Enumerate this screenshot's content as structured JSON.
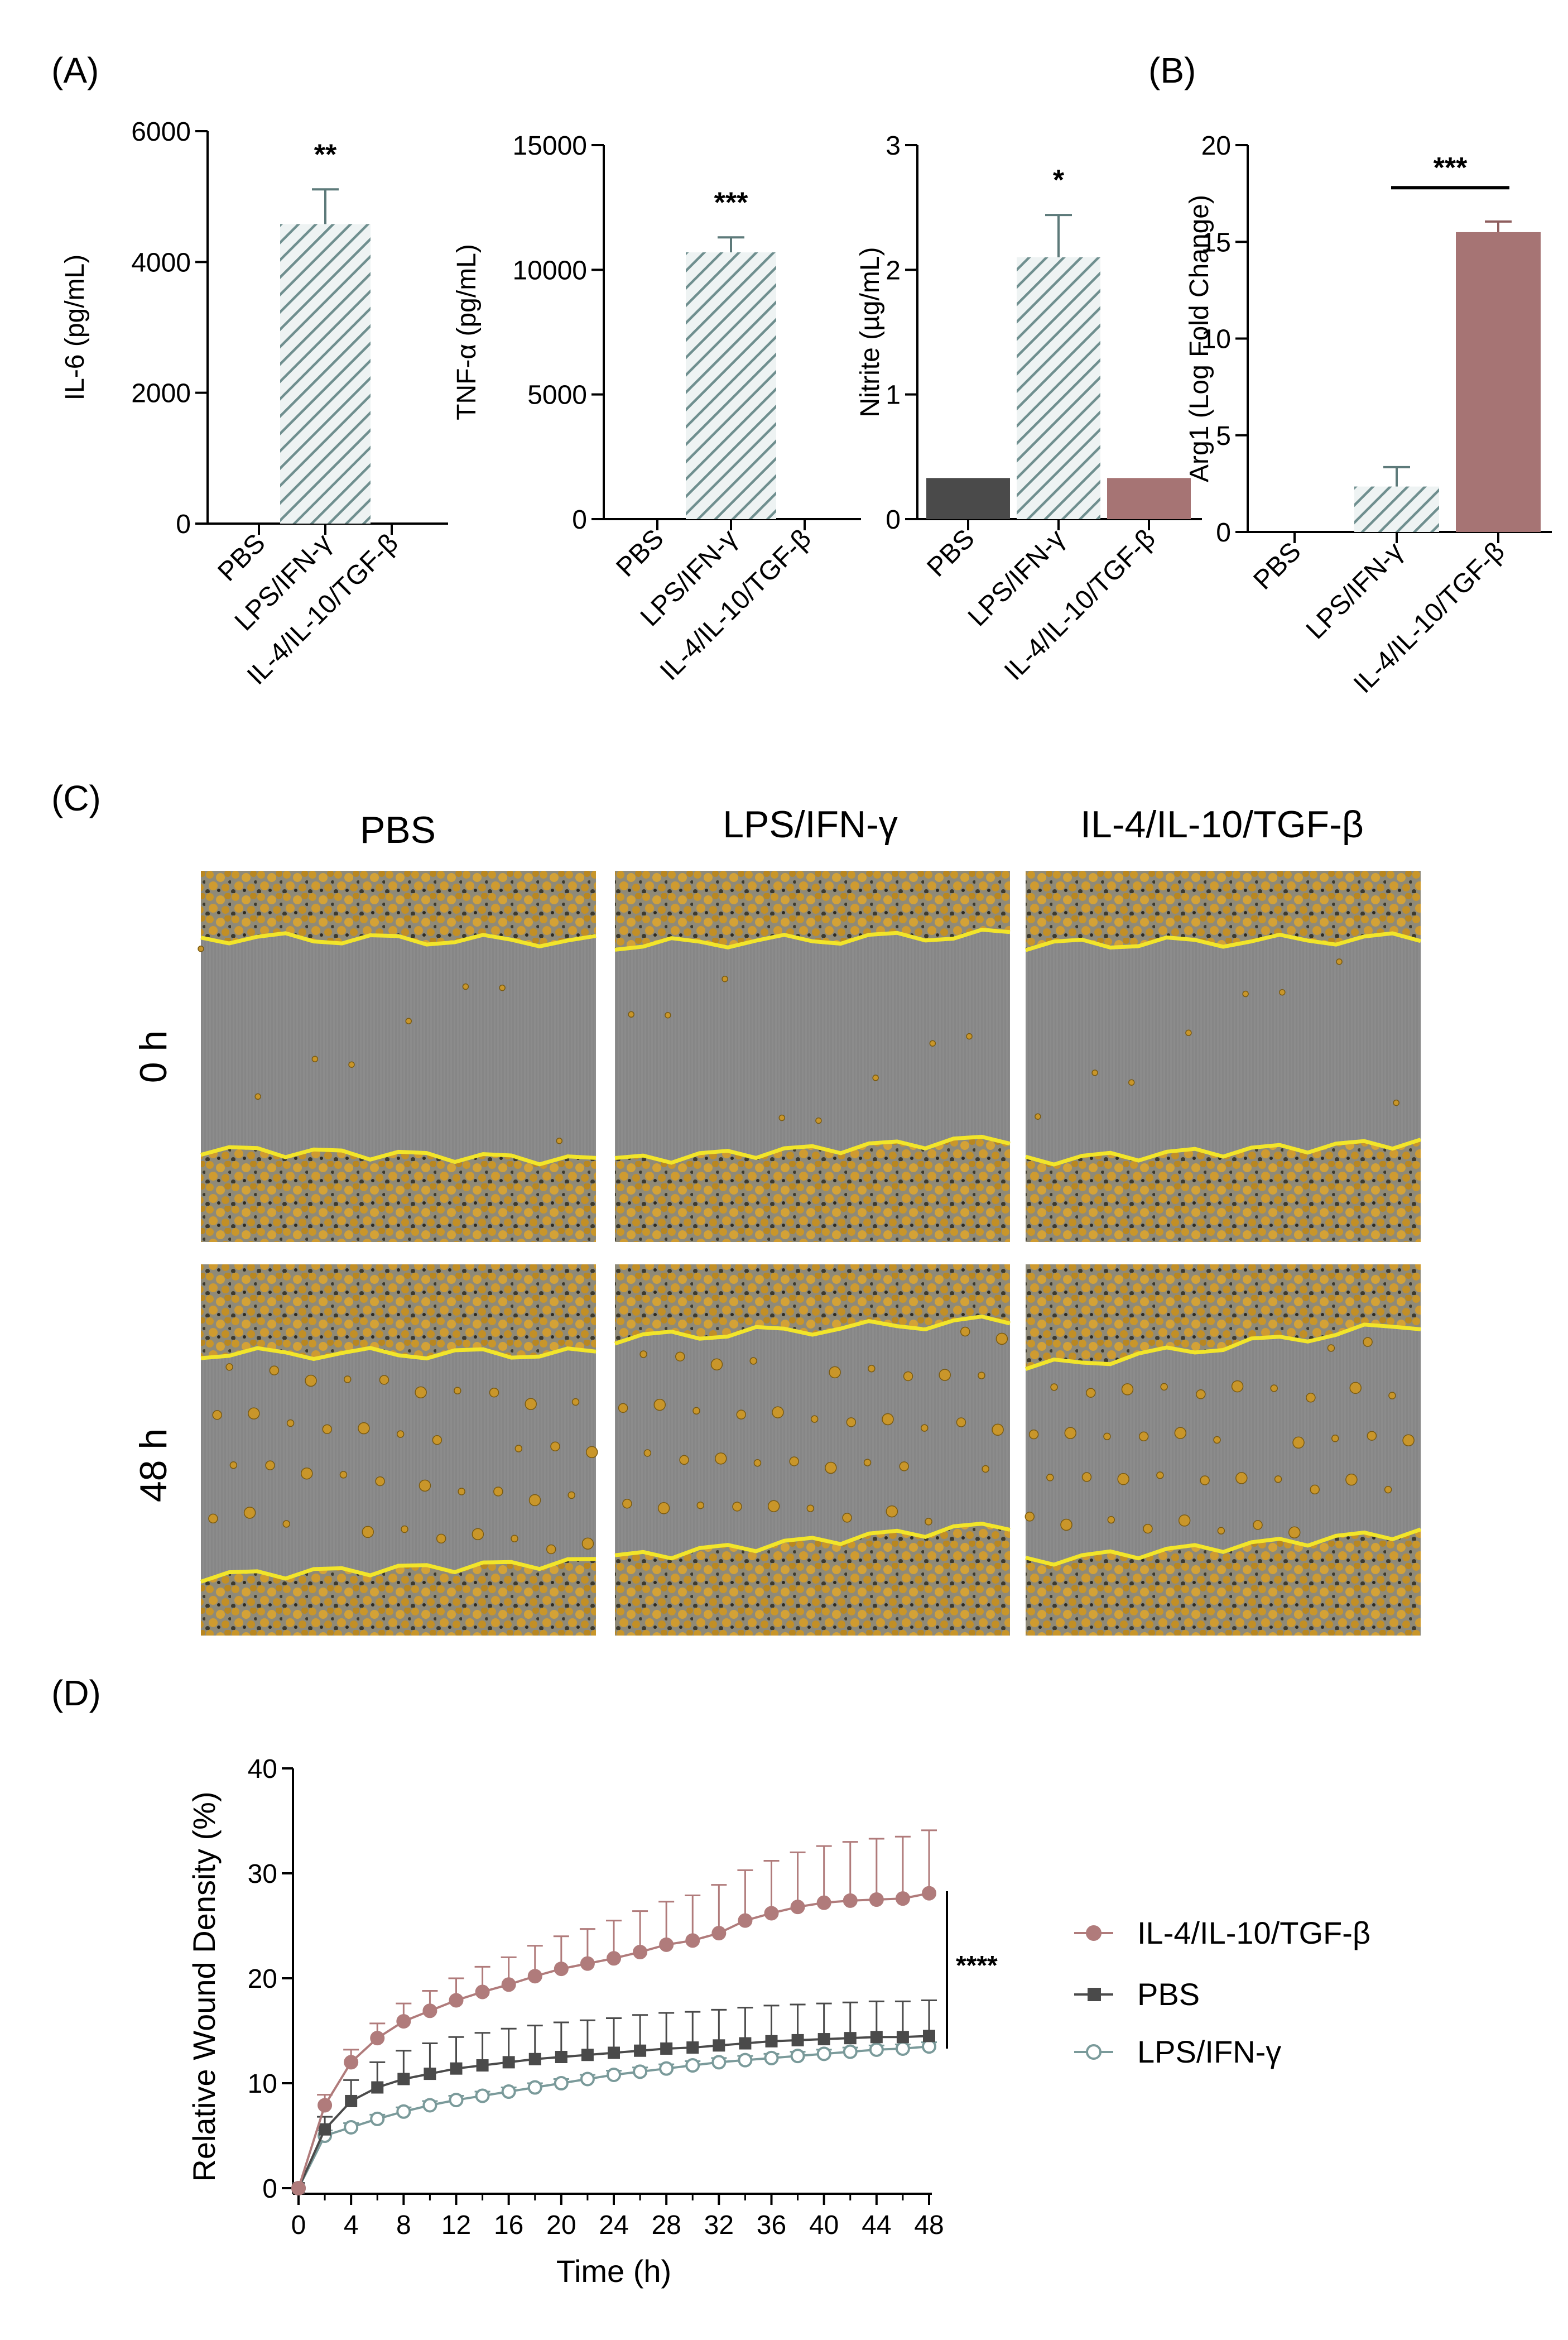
{
  "colors": {
    "axis": "#000000",
    "pbs": "#4a4a4a",
    "lps": "#7a9a9a",
    "lps_hatch_bg": "#eef3f3",
    "il4": "#b07b7b",
    "il4_bar": "#a67474",
    "micro_bg": "#8c8c8c",
    "micro_cells": "#c9962a",
    "wound_line": "#f2e52a"
  },
  "panels": {
    "A_label": "(A)",
    "B_label": "(B)",
    "C_label": "(C)",
    "D_label": "(D)"
  },
  "chart_data": [
    {
      "id": "il6",
      "type": "bar",
      "ylabel": "IL-6 (pg/mL)",
      "categories": [
        "PBS",
        "LPS/IFN-γ",
        "IL-4/IL-10/TGF-β"
      ],
      "values": [
        0,
        4580,
        0
      ],
      "errors": [
        0,
        530,
        0
      ],
      "ylim": [
        0,
        6000
      ],
      "yticks": [
        "0",
        "2000",
        "4000",
        "6000"
      ],
      "ytick_values": [
        0,
        2000,
        4000,
        6000
      ],
      "significance": "**"
    },
    {
      "id": "tnfa",
      "type": "bar",
      "ylabel": "TNF-α (pg/mL)",
      "categories": [
        "PBS",
        "LPS/IFN-γ",
        "IL-4/IL-10/TGF-β"
      ],
      "values": [
        0,
        10700,
        0
      ],
      "errors": [
        0,
        600,
        0
      ],
      "ylim": [
        0,
        15000
      ],
      "yticks": [
        "0",
        "5000",
        "10000",
        "15000"
      ],
      "ytick_values": [
        0,
        5000,
        10000,
        15000
      ],
      "significance": "***"
    },
    {
      "id": "nitrite",
      "type": "bar",
      "ylabel": "Nitrite (µg/mL)",
      "categories": [
        "PBS",
        "LPS/IFN-γ",
        "IL-4/IL-10/TGF-β"
      ],
      "values": [
        0.33,
        2.1,
        0.33
      ],
      "errors": [
        0,
        0.34,
        0
      ],
      "ylim": [
        0,
        3
      ],
      "yticks": [
        "0",
        "1",
        "2",
        "3"
      ],
      "ytick_values": [
        0,
        1,
        2,
        3
      ],
      "significance": "*"
    },
    {
      "id": "arg1",
      "type": "bar",
      "ylabel": "Arg1 (Log Fold Change)",
      "categories": [
        "PBS",
        "LPS/IFN-γ",
        "IL-4/IL-10/TGF-β"
      ],
      "values": [
        0,
        2.35,
        15.5
      ],
      "errors": [
        0,
        1.0,
        0.55
      ],
      "ylim": [
        0,
        20
      ],
      "yticks": [
        "0",
        "5",
        "10",
        "15",
        "20"
      ],
      "ytick_values": [
        0,
        5,
        10,
        15,
        20
      ],
      "significance": "***"
    },
    {
      "id": "wound",
      "type": "line",
      "xlabel": "Time (h)",
      "ylabel": "Relative Wound Density (%)",
      "xlim": [
        0,
        48
      ],
      "ylim": [
        0,
        40
      ],
      "xticks": [
        "0",
        "4",
        "8",
        "12",
        "16",
        "20",
        "24",
        "28",
        "32",
        "36",
        "40",
        "44",
        "48"
      ],
      "xtick_values": [
        0,
        4,
        8,
        12,
        16,
        20,
        24,
        28,
        32,
        36,
        40,
        44,
        48
      ],
      "yticks": [
        "0",
        "10",
        "20",
        "30",
        "40"
      ],
      "ytick_values": [
        0,
        10,
        20,
        30,
        40
      ],
      "x": [
        0,
        2,
        4,
        6,
        8,
        10,
        12,
        14,
        16,
        18,
        20,
        22,
        24,
        26,
        28,
        30,
        32,
        34,
        36,
        38,
        40,
        42,
        44,
        46,
        48
      ],
      "significance": "****",
      "series": [
        {
          "name": "IL-4/IL-10/TGF-β",
          "marker": "circle-filled",
          "values": [
            0,
            7.9,
            12.0,
            14.3,
            15.9,
            16.9,
            17.9,
            18.7,
            19.4,
            20.2,
            20.9,
            21.4,
            21.9,
            22.5,
            23.2,
            23.6,
            24.3,
            25.5,
            26.2,
            26.8,
            27.2,
            27.4,
            27.5,
            27.6,
            28.1
          ],
          "errors": [
            0,
            1.0,
            1.2,
            1.4,
            1.7,
            1.9,
            2.1,
            2.4,
            2.6,
            2.9,
            3.1,
            3.3,
            3.6,
            3.9,
            4.1,
            4.3,
            4.6,
            4.8,
            5.0,
            5.2,
            5.4,
            5.6,
            5.8,
            5.9,
            6.0
          ]
        },
        {
          "name": "PBS",
          "marker": "square-filled",
          "values": [
            0,
            5.6,
            8.3,
            9.6,
            10.4,
            10.9,
            11.4,
            11.7,
            12.0,
            12.3,
            12.5,
            12.7,
            12.9,
            13.1,
            13.3,
            13.4,
            13.6,
            13.8,
            14.0,
            14.1,
            14.2,
            14.3,
            14.4,
            14.4,
            14.5
          ],
          "errors": [
            0,
            1.2,
            2.0,
            2.4,
            2.7,
            2.9,
            3.0,
            3.1,
            3.2,
            3.2,
            3.3,
            3.3,
            3.3,
            3.4,
            3.4,
            3.4,
            3.4,
            3.4,
            3.4,
            3.4,
            3.4,
            3.4,
            3.4,
            3.4,
            3.4
          ]
        },
        {
          "name": "LPS/IFN-γ",
          "marker": "circle-open",
          "values": [
            0,
            5.0,
            5.8,
            6.6,
            7.3,
            7.9,
            8.4,
            8.8,
            9.2,
            9.6,
            10.0,
            10.4,
            10.8,
            11.1,
            11.4,
            11.7,
            12.0,
            12.2,
            12.4,
            12.6,
            12.8,
            13.0,
            13.2,
            13.3,
            13.5
          ],
          "errors": [
            0,
            0.5,
            0.4,
            0.4,
            0.4,
            0.4,
            0.4,
            0.4,
            0.4,
            0.4,
            0.4,
            0.4,
            0.4,
            0.4,
            0.4,
            0.4,
            0.4,
            0.4,
            0.4,
            0.4,
            0.4,
            0.4,
            0.4,
            0.4,
            0.4
          ]
        }
      ]
    }
  ],
  "micrographs": {
    "columns": [
      "PBS",
      "LPS/IFN-γ",
      "IL-4/IL-10/TGF-β"
    ],
    "rows": [
      "0 h",
      "48 h"
    ]
  }
}
